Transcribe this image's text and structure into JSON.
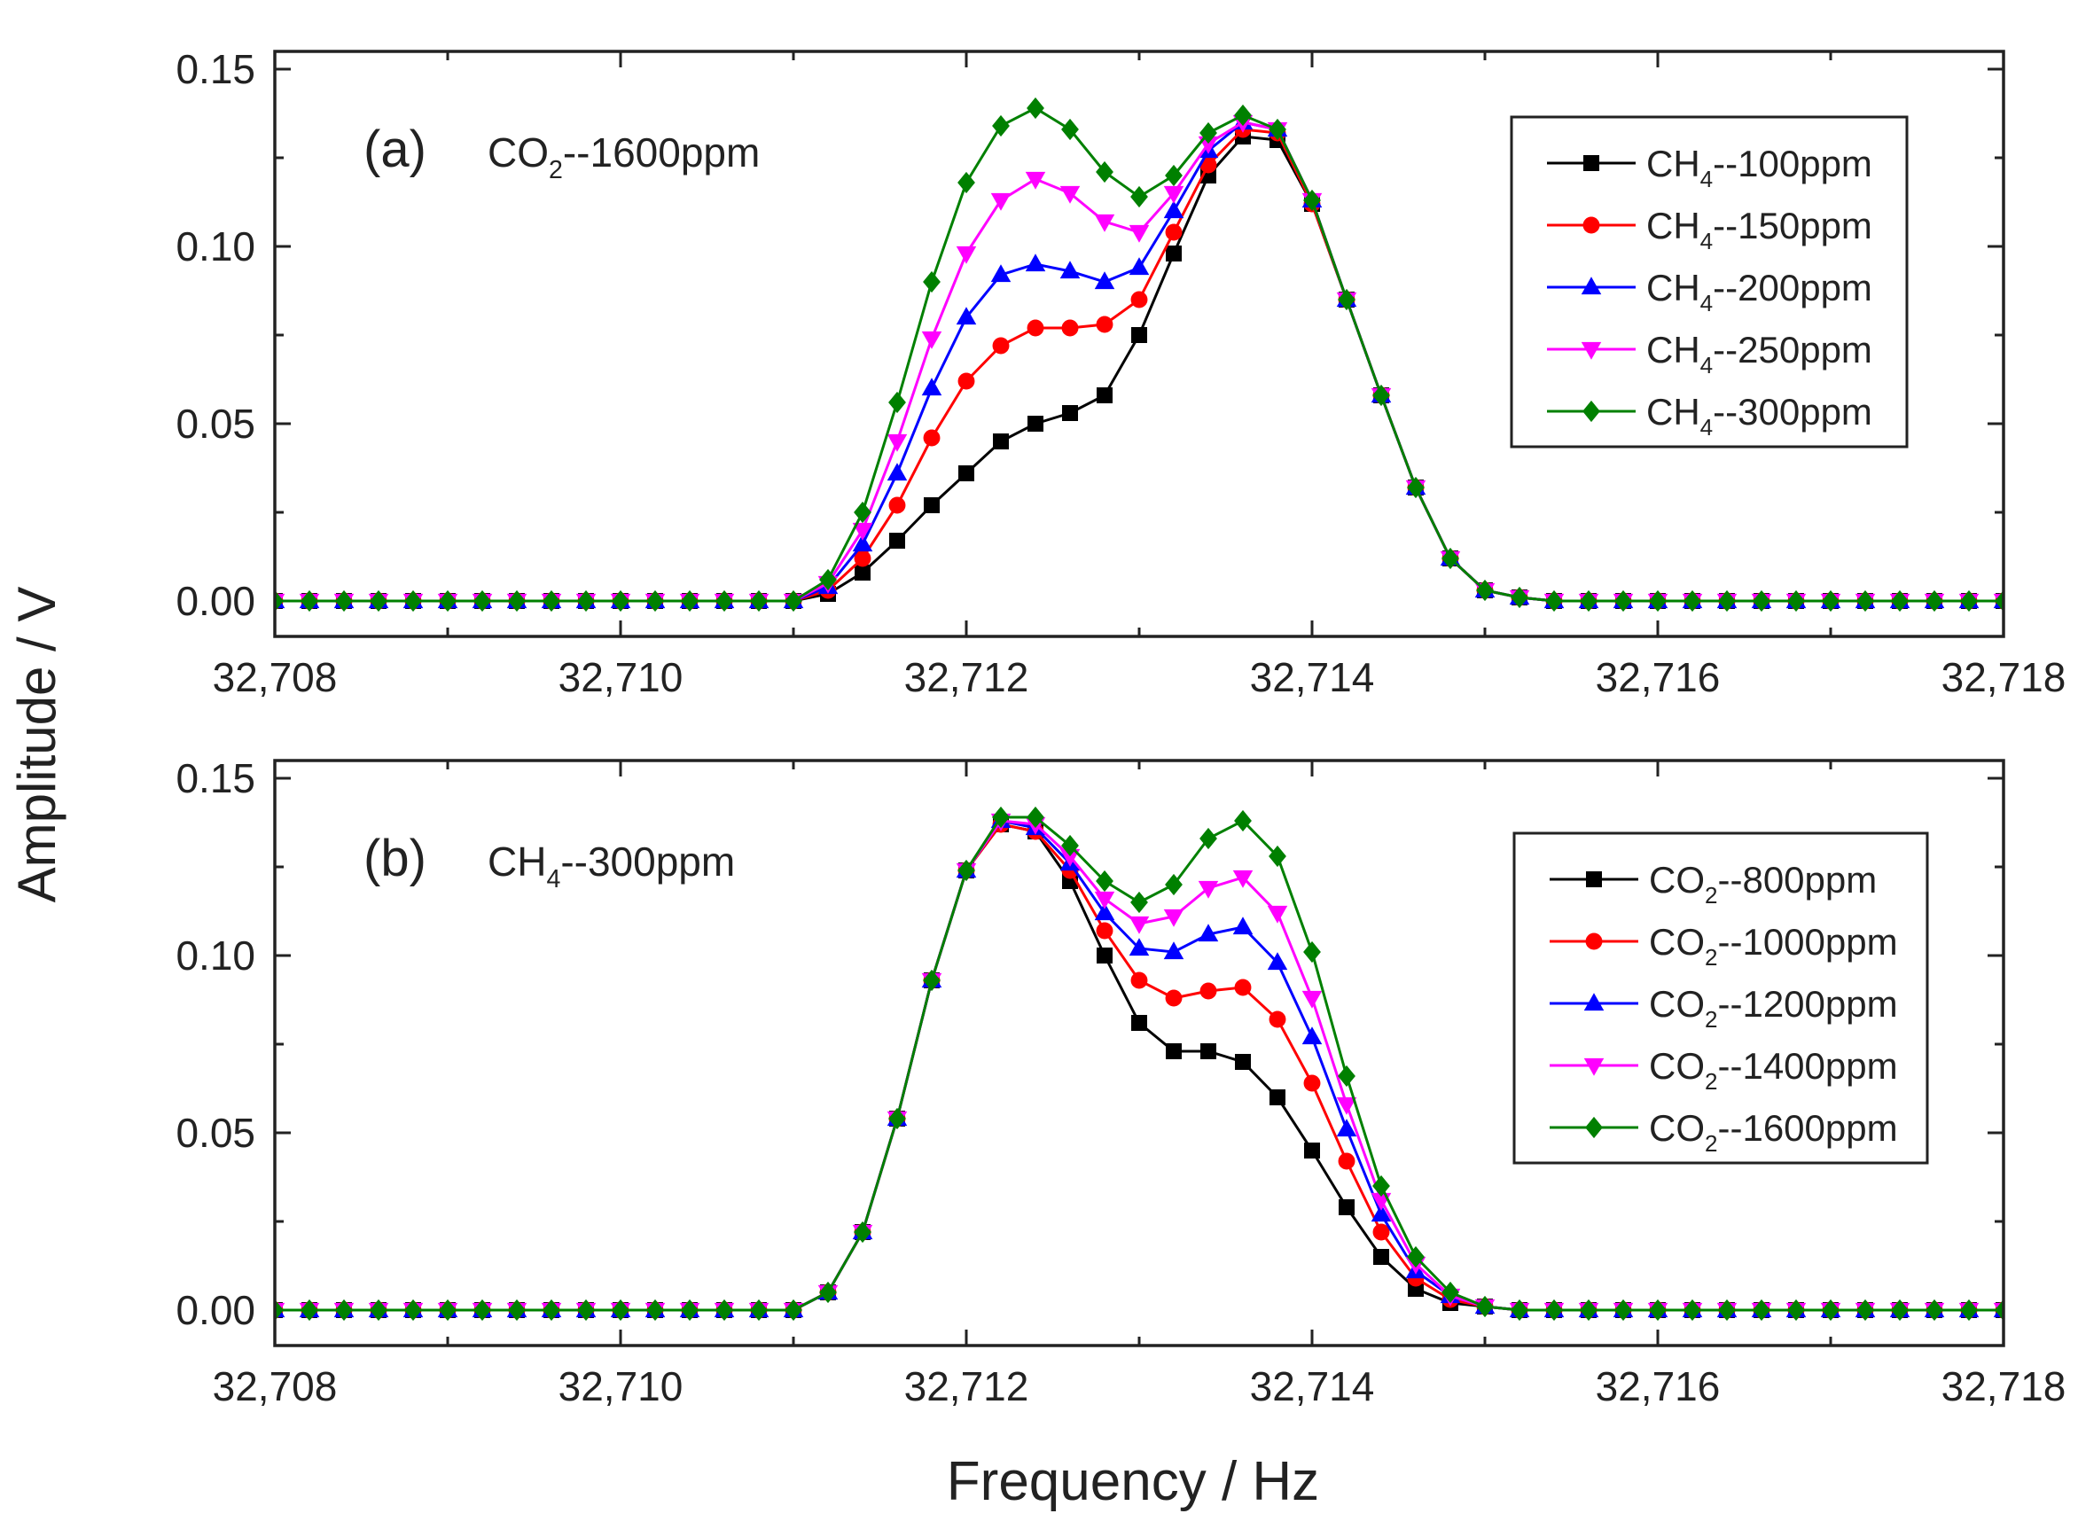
{
  "figure": {
    "ylabel": "Amplitude / V",
    "xlabel": "Frequency / Hz"
  },
  "chart_data": [
    {
      "type": "line",
      "panel_label": "(a)",
      "condition": {
        "species": "CO",
        "subscript": "2",
        "suffix": "--1600ppm"
      },
      "xlim": [
        32708,
        32718
      ],
      "ylim": [
        -0.01,
        0.155
      ],
      "xticks": [
        32708,
        32710,
        32712,
        32714,
        32716,
        32718
      ],
      "xtick_labels": [
        "32,708",
        "32,710",
        "32,712",
        "32,714",
        "32,716",
        "32,718"
      ],
      "yticks": [
        0.0,
        0.05,
        0.1,
        0.15
      ],
      "ytick_labels": [
        "0.00",
        "0.05",
        "0.10",
        "0.15"
      ],
      "legend_position": "top-right",
      "x": [
        32711.0,
        32711.2,
        32711.4,
        32711.6,
        32711.8,
        32712.0,
        32712.2,
        32712.4,
        32712.6,
        32712.8,
        32713.0,
        32713.2,
        32713.4,
        32713.6,
        32713.8,
        32714.0,
        32714.2,
        32714.4,
        32714.6,
        32714.8,
        32715.0,
        32715.2
      ],
      "series": [
        {
          "label": {
            "species": "CH",
            "subscript": "4",
            "suffix": "--100ppm"
          },
          "color": "#000000",
          "marker": "square",
          "values": [
            0.0,
            0.002,
            0.008,
            0.017,
            0.027,
            0.036,
            0.045,
            0.05,
            0.053,
            0.058,
            0.075,
            0.098,
            0.12,
            0.131,
            0.13,
            0.112,
            0.085,
            0.058,
            0.032,
            0.012,
            0.003,
            0.001
          ]
        },
        {
          "label": {
            "species": "CH",
            "subscript": "4",
            "suffix": "--150ppm"
          },
          "color": "#ff0000",
          "marker": "circle",
          "values": [
            0.0,
            0.003,
            0.012,
            0.027,
            0.046,
            0.062,
            0.072,
            0.077,
            0.077,
            0.078,
            0.085,
            0.104,
            0.123,
            0.133,
            0.132,
            0.112,
            0.085,
            0.058,
            0.032,
            0.012,
            0.003,
            0.001
          ]
        },
        {
          "label": {
            "species": "CH",
            "subscript": "4",
            "suffix": "--200ppm"
          },
          "color": "#0000ff",
          "marker": "triangle-up",
          "values": [
            0.0,
            0.004,
            0.016,
            0.036,
            0.06,
            0.08,
            0.092,
            0.095,
            0.093,
            0.09,
            0.094,
            0.11,
            0.127,
            0.135,
            0.133,
            0.113,
            0.085,
            0.058,
            0.032,
            0.012,
            0.003,
            0.001
          ]
        },
        {
          "label": {
            "species": "CH",
            "subscript": "4",
            "suffix": "--250ppm"
          },
          "color": "#ff00ff",
          "marker": "triangle-down",
          "values": [
            0.0,
            0.005,
            0.02,
            0.045,
            0.074,
            0.098,
            0.113,
            0.119,
            0.115,
            0.107,
            0.104,
            0.115,
            0.129,
            0.135,
            0.133,
            0.113,
            0.085,
            0.058,
            0.032,
            0.012,
            0.003,
            0.001
          ]
        },
        {
          "label": {
            "species": "CH",
            "subscript": "4",
            "suffix": "--300ppm"
          },
          "color": "#008000",
          "marker": "diamond",
          "values": [
            0.0,
            0.006,
            0.025,
            0.056,
            0.09,
            0.118,
            0.134,
            0.139,
            0.133,
            0.121,
            0.114,
            0.12,
            0.132,
            0.137,
            0.133,
            0.113,
            0.085,
            0.058,
            0.032,
            0.012,
            0.003,
            0.001
          ]
        }
      ]
    },
    {
      "type": "line",
      "panel_label": "(b)",
      "condition": {
        "species": "CH",
        "subscript": "4",
        "suffix": "--300ppm"
      },
      "xlim": [
        32708,
        32718
      ],
      "ylim": [
        -0.01,
        0.155
      ],
      "xticks": [
        32708,
        32710,
        32712,
        32714,
        32716,
        32718
      ],
      "xtick_labels": [
        "32,708",
        "32,710",
        "32,712",
        "32,714",
        "32,716",
        "32,718"
      ],
      "yticks": [
        0.0,
        0.05,
        0.1,
        0.15
      ],
      "ytick_labels": [
        "0.00",
        "0.05",
        "0.10",
        "0.15"
      ],
      "legend_position": "top-right",
      "x": [
        32711.0,
        32711.2,
        32711.4,
        32711.6,
        32711.8,
        32712.0,
        32712.2,
        32712.4,
        32712.6,
        32712.8,
        32713.0,
        32713.2,
        32713.4,
        32713.6,
        32713.8,
        32714.0,
        32714.2,
        32714.4,
        32714.6,
        32714.8,
        32715.0,
        32715.2
      ],
      "series": [
        {
          "label": {
            "species": "CO",
            "subscript": "2",
            "suffix": "--800ppm"
          },
          "color": "#000000",
          "marker": "square",
          "values": [
            0.0,
            0.005,
            0.022,
            0.054,
            0.093,
            0.124,
            0.137,
            0.135,
            0.121,
            0.1,
            0.081,
            0.073,
            0.073,
            0.07,
            0.06,
            0.045,
            0.029,
            0.015,
            0.006,
            0.002,
            0.001,
            0.0
          ]
        },
        {
          "label": {
            "species": "CO",
            "subscript": "2",
            "suffix": "--1000ppm"
          },
          "color": "#ff0000",
          "marker": "circle",
          "values": [
            0.0,
            0.005,
            0.022,
            0.054,
            0.093,
            0.124,
            0.137,
            0.135,
            0.124,
            0.107,
            0.093,
            0.088,
            0.09,
            0.091,
            0.082,
            0.064,
            0.042,
            0.022,
            0.009,
            0.003,
            0.001,
            0.0
          ]
        },
        {
          "label": {
            "species": "CO",
            "subscript": "2",
            "suffix": "--1200ppm"
          },
          "color": "#0000ff",
          "marker": "triangle-up",
          "values": [
            0.0,
            0.005,
            0.022,
            0.054,
            0.093,
            0.124,
            0.138,
            0.136,
            0.126,
            0.112,
            0.102,
            0.101,
            0.106,
            0.108,
            0.098,
            0.077,
            0.051,
            0.027,
            0.011,
            0.004,
            0.001,
            0.0
          ]
        },
        {
          "label": {
            "species": "CO",
            "subscript": "2",
            "suffix": "--1400ppm"
          },
          "color": "#ff00ff",
          "marker": "triangle-down",
          "values": [
            0.0,
            0.005,
            0.022,
            0.054,
            0.093,
            0.124,
            0.138,
            0.137,
            0.128,
            0.116,
            0.109,
            0.111,
            0.119,
            0.122,
            0.112,
            0.088,
            0.058,
            0.031,
            0.013,
            0.004,
            0.001,
            0.0
          ]
        },
        {
          "label": {
            "species": "CO",
            "subscript": "2",
            "suffix": "--1600ppm"
          },
          "color": "#008000",
          "marker": "diamond",
          "values": [
            0.0,
            0.005,
            0.022,
            0.054,
            0.093,
            0.124,
            0.139,
            0.139,
            0.131,
            0.121,
            0.115,
            0.12,
            0.133,
            0.138,
            0.128,
            0.101,
            0.066,
            0.035,
            0.015,
            0.005,
            0.001,
            0.0
          ]
        }
      ]
    }
  ]
}
